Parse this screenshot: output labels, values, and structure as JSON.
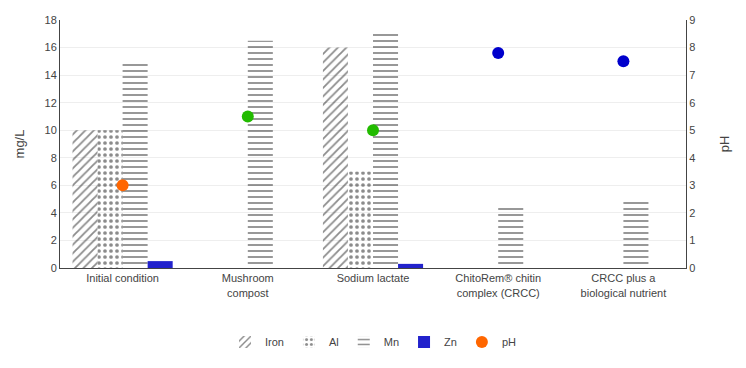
{
  "chart_data": {
    "type": "bar",
    "categories": [
      "Initial condition",
      "Mushroom\ncompost",
      "Sodium lactate",
      "ChitoRem® chitin\ncomplex (CRCC)",
      "CRCC plus a\nbiological nutrient"
    ],
    "series": [
      {
        "name": "Iron",
        "color": "#AA2200",
        "values": [
          10,
          0,
          16,
          0,
          0
        ]
      },
      {
        "name": "Al",
        "color": "#B0B0B0",
        "values": [
          10,
          0,
          7,
          0,
          0
        ]
      },
      {
        "name": "Mn",
        "color": "#CC88CC",
        "values": [
          15,
          16.5,
          17,
          4.5,
          5
        ]
      },
      {
        "name": "Zn",
        "color": "#2222CC",
        "values": [
          0.5,
          0,
          0.3,
          0,
          0
        ]
      },
      {
        "name": "pH",
        "type": "scatter",
        "axis": "y2",
        "marker": "circle",
        "colors": [
          "#FF6600",
          "#22BB00",
          "#22BB00",
          "#0000CC",
          "#0000CC"
        ],
        "values": [
          3.0,
          5.5,
          5.0,
          7.8,
          7.5
        ]
      }
    ],
    "ylabel": "mg/L",
    "y2label": "pH",
    "ylim": [
      0,
      18
    ],
    "yticks": [
      0,
      2,
      4,
      6,
      8,
      10,
      12,
      14,
      16,
      18
    ],
    "y2lim": [
      0,
      9
    ],
    "y2ticks": [
      0,
      1,
      2,
      3,
      4,
      5,
      6,
      7,
      8,
      9
    ],
    "grid": true,
    "legend": "bottom"
  }
}
